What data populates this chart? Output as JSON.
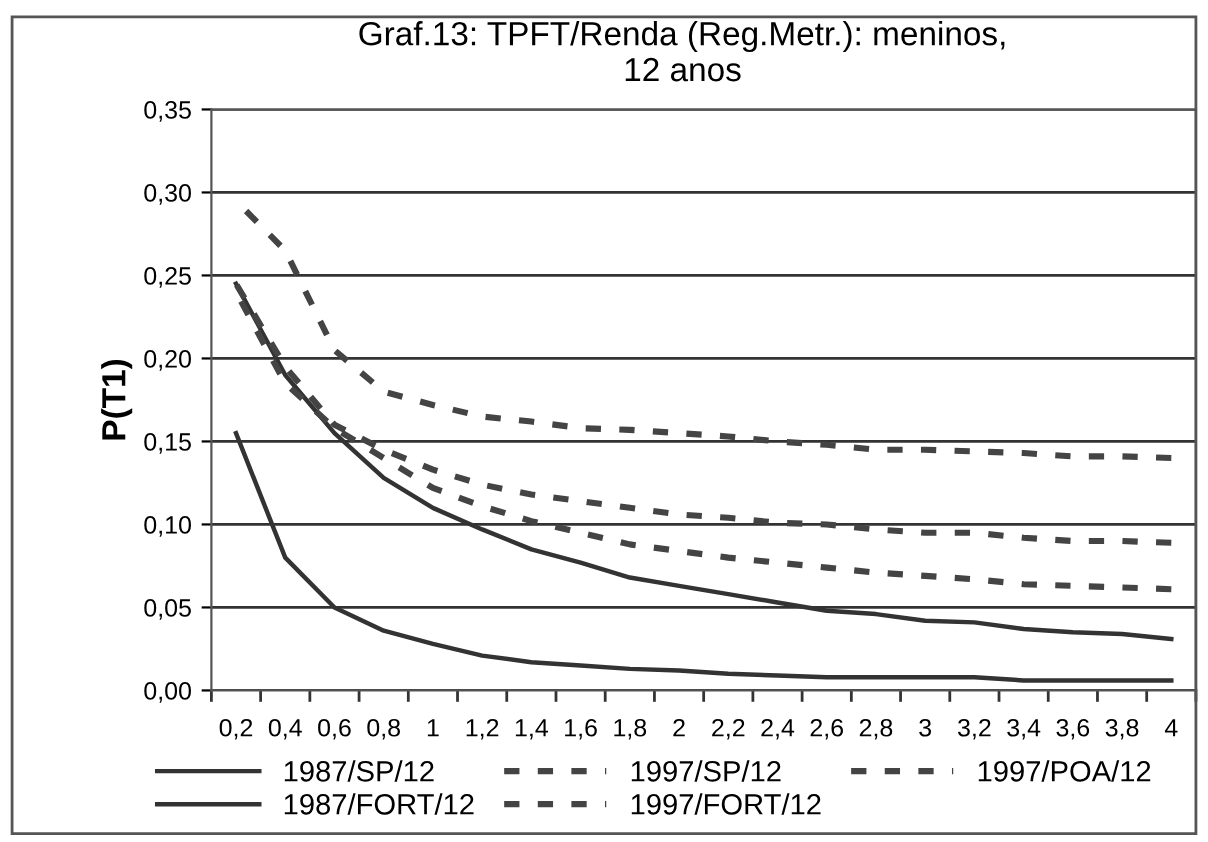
{
  "chart_data": {
    "type": "line",
    "title": "Graf.13: TPFT/Renda (Reg.Metr.): meninos, 12 anos",
    "ylabel": "P(T1)",
    "categories": [
      "0,2",
      "0,4",
      "0,6",
      "0,8",
      "1",
      "1,2",
      "1,4",
      "1,6",
      "1,8",
      "2",
      "2,2",
      "2,4",
      "2,6",
      "2,8",
      "3",
      "3,2",
      "3,4",
      "3,6",
      "3,8",
      "4"
    ],
    "series": [
      {
        "name": "1987/SP/12",
        "color": "#333333",
        "line_style": "solid",
        "values": [
          0.245,
          0.19,
          0.155,
          0.128,
          0.11,
          0.097,
          0.085,
          0.077,
          0.068,
          0.063,
          0.058,
          0.053,
          0.048,
          0.046,
          0.042,
          0.041,
          0.037,
          0.035,
          0.034,
          0.031
        ]
      },
      {
        "name": "1987/FORT/12",
        "color": "#333333",
        "line_style": "solid",
        "values": [
          0.155,
          0.08,
          0.05,
          0.036,
          0.028,
          0.021,
          0.017,
          0.015,
          0.013,
          0.012,
          0.01,
          0.009,
          0.008,
          0.008,
          0.008,
          0.008,
          0.006,
          0.006,
          0.006,
          0.006
        ]
      },
      {
        "name": "1997/SP/12",
        "color": "#444444",
        "line_style": "dashed",
        "values": [
          0.245,
          0.195,
          0.16,
          0.145,
          0.133,
          0.124,
          0.118,
          0.114,
          0.11,
          0.106,
          0.104,
          0.101,
          0.1,
          0.097,
          0.095,
          0.095,
          0.092,
          0.09,
          0.09,
          0.089
        ]
      },
      {
        "name": "1997/FORT/12",
        "color": "#444444",
        "line_style": "dashed",
        "values": [
          0.295,
          0.265,
          0.205,
          0.18,
          0.172,
          0.165,
          0.162,
          0.158,
          0.157,
          0.155,
          0.153,
          0.15,
          0.148,
          0.145,
          0.145,
          0.144,
          0.143,
          0.141,
          0.141,
          0.14
        ]
      },
      {
        "name": "1997/POA/12",
        "color": "#444444",
        "line_style": "dashed",
        "values": [
          0.24,
          0.185,
          0.158,
          0.14,
          0.122,
          0.111,
          0.102,
          0.095,
          0.088,
          0.084,
          0.08,
          0.077,
          0.074,
          0.071,
          0.069,
          0.067,
          0.064,
          0.063,
          0.062,
          0.061
        ]
      }
    ],
    "ylim": [
      0,
      0.35
    ],
    "yticks": [
      {
        "value": 0,
        "label": "0,00"
      },
      {
        "value": 0.05,
        "label": "0,05"
      },
      {
        "value": 0.1,
        "label": "0,10"
      },
      {
        "value": 0.15,
        "label": "0,15"
      },
      {
        "value": 0.2,
        "label": "0,20"
      },
      {
        "value": 0.25,
        "label": "0,25"
      },
      {
        "value": 0.3,
        "label": "0,30"
      },
      {
        "value": 0.35,
        "label": "0,35"
      }
    ],
    "grid": "y",
    "legend": "bottom",
    "marker": "none"
  }
}
